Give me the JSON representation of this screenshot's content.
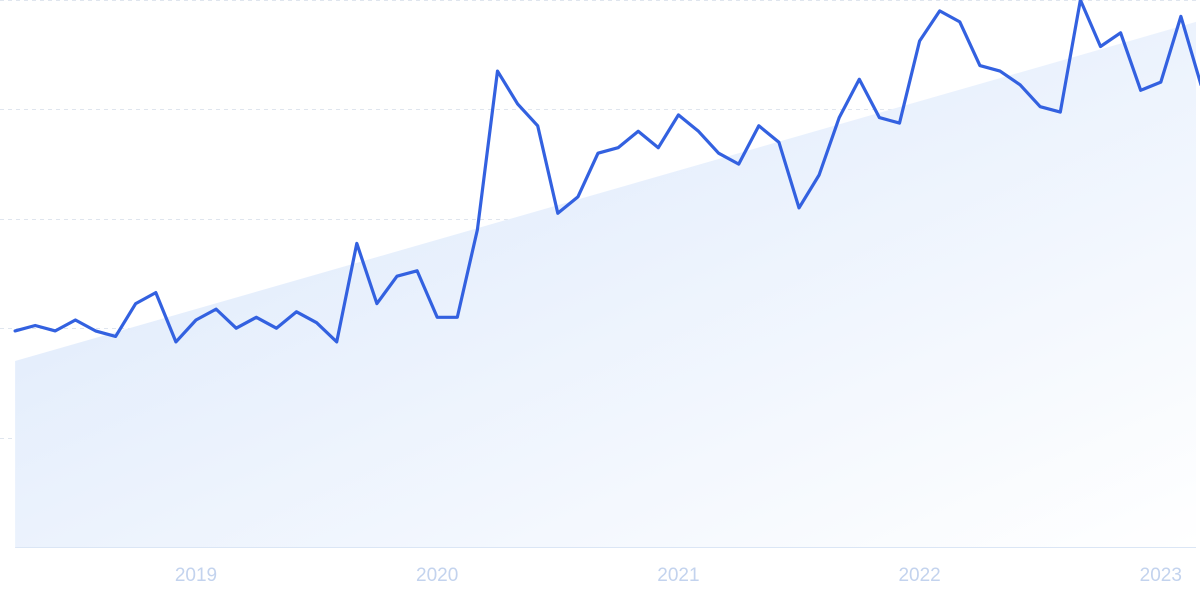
{
  "chart_data": {
    "type": "line",
    "title": "",
    "xlabel": "",
    "ylabel": "",
    "x_tick_labels": [
      "2019",
      "2020",
      "2021",
      "2022",
      "2023"
    ],
    "x_tick_dates": [
      "2019-01-01",
      "2020-01-01",
      "2021-01-01",
      "2022-01-01",
      "2023-01-01"
    ],
    "y_range": [
      0,
      100
    ],
    "y_gridlines": [
      20,
      40,
      60,
      80,
      100
    ],
    "y_tick_labels_visible": false,
    "grid": "horizontal dashed",
    "trend_line": {
      "shown": true,
      "start": 34,
      "end": 96
    },
    "series": [
      {
        "color": "#3361e0",
        "x": [
          "2018-04",
          "2018-05",
          "2018-06",
          "2018-07",
          "2018-08",
          "2018-09",
          "2018-10",
          "2018-11",
          "2018-12",
          "2019-01",
          "2019-02",
          "2019-03",
          "2019-04",
          "2019-05",
          "2019-06",
          "2019-07",
          "2019-08",
          "2019-09",
          "2019-10",
          "2019-11",
          "2019-12",
          "2020-01",
          "2020-02",
          "2020-03",
          "2020-04",
          "2020-05",
          "2020-06",
          "2020-07",
          "2020-08",
          "2020-09",
          "2020-10",
          "2020-11",
          "2020-12",
          "2021-01",
          "2021-02",
          "2021-03",
          "2021-04",
          "2021-05",
          "2021-06",
          "2021-07",
          "2021-08",
          "2021-09",
          "2021-10",
          "2021-11",
          "2021-12",
          "2022-01",
          "2022-02",
          "2022-03",
          "2022-04",
          "2022-05",
          "2022-06",
          "2022-07",
          "2022-08",
          "2022-09",
          "2022-10",
          "2022-11",
          "2022-12",
          "2023-01",
          "2023-02",
          "2023-03"
        ],
        "values": [
          39.5,
          40.5,
          39.5,
          41.5,
          39.5,
          38.5,
          44.5,
          46.5,
          37.5,
          41.5,
          43.5,
          40,
          42,
          40,
          43,
          41,
          37.5,
          55.5,
          44.5,
          49.5,
          50.5,
          42,
          42,
          58,
          87,
          81,
          77,
          61,
          64,
          72,
          73,
          76,
          73,
          79,
          76,
          72,
          70,
          77,
          74,
          62,
          68,
          78.5,
          85.5,
          78.5,
          77.5,
          92.5,
          98,
          96,
          88,
          87,
          84.5,
          80.5,
          79.5,
          100,
          91.5,
          94,
          83.5,
          85,
          97,
          84.5
        ]
      }
    ]
  }
}
